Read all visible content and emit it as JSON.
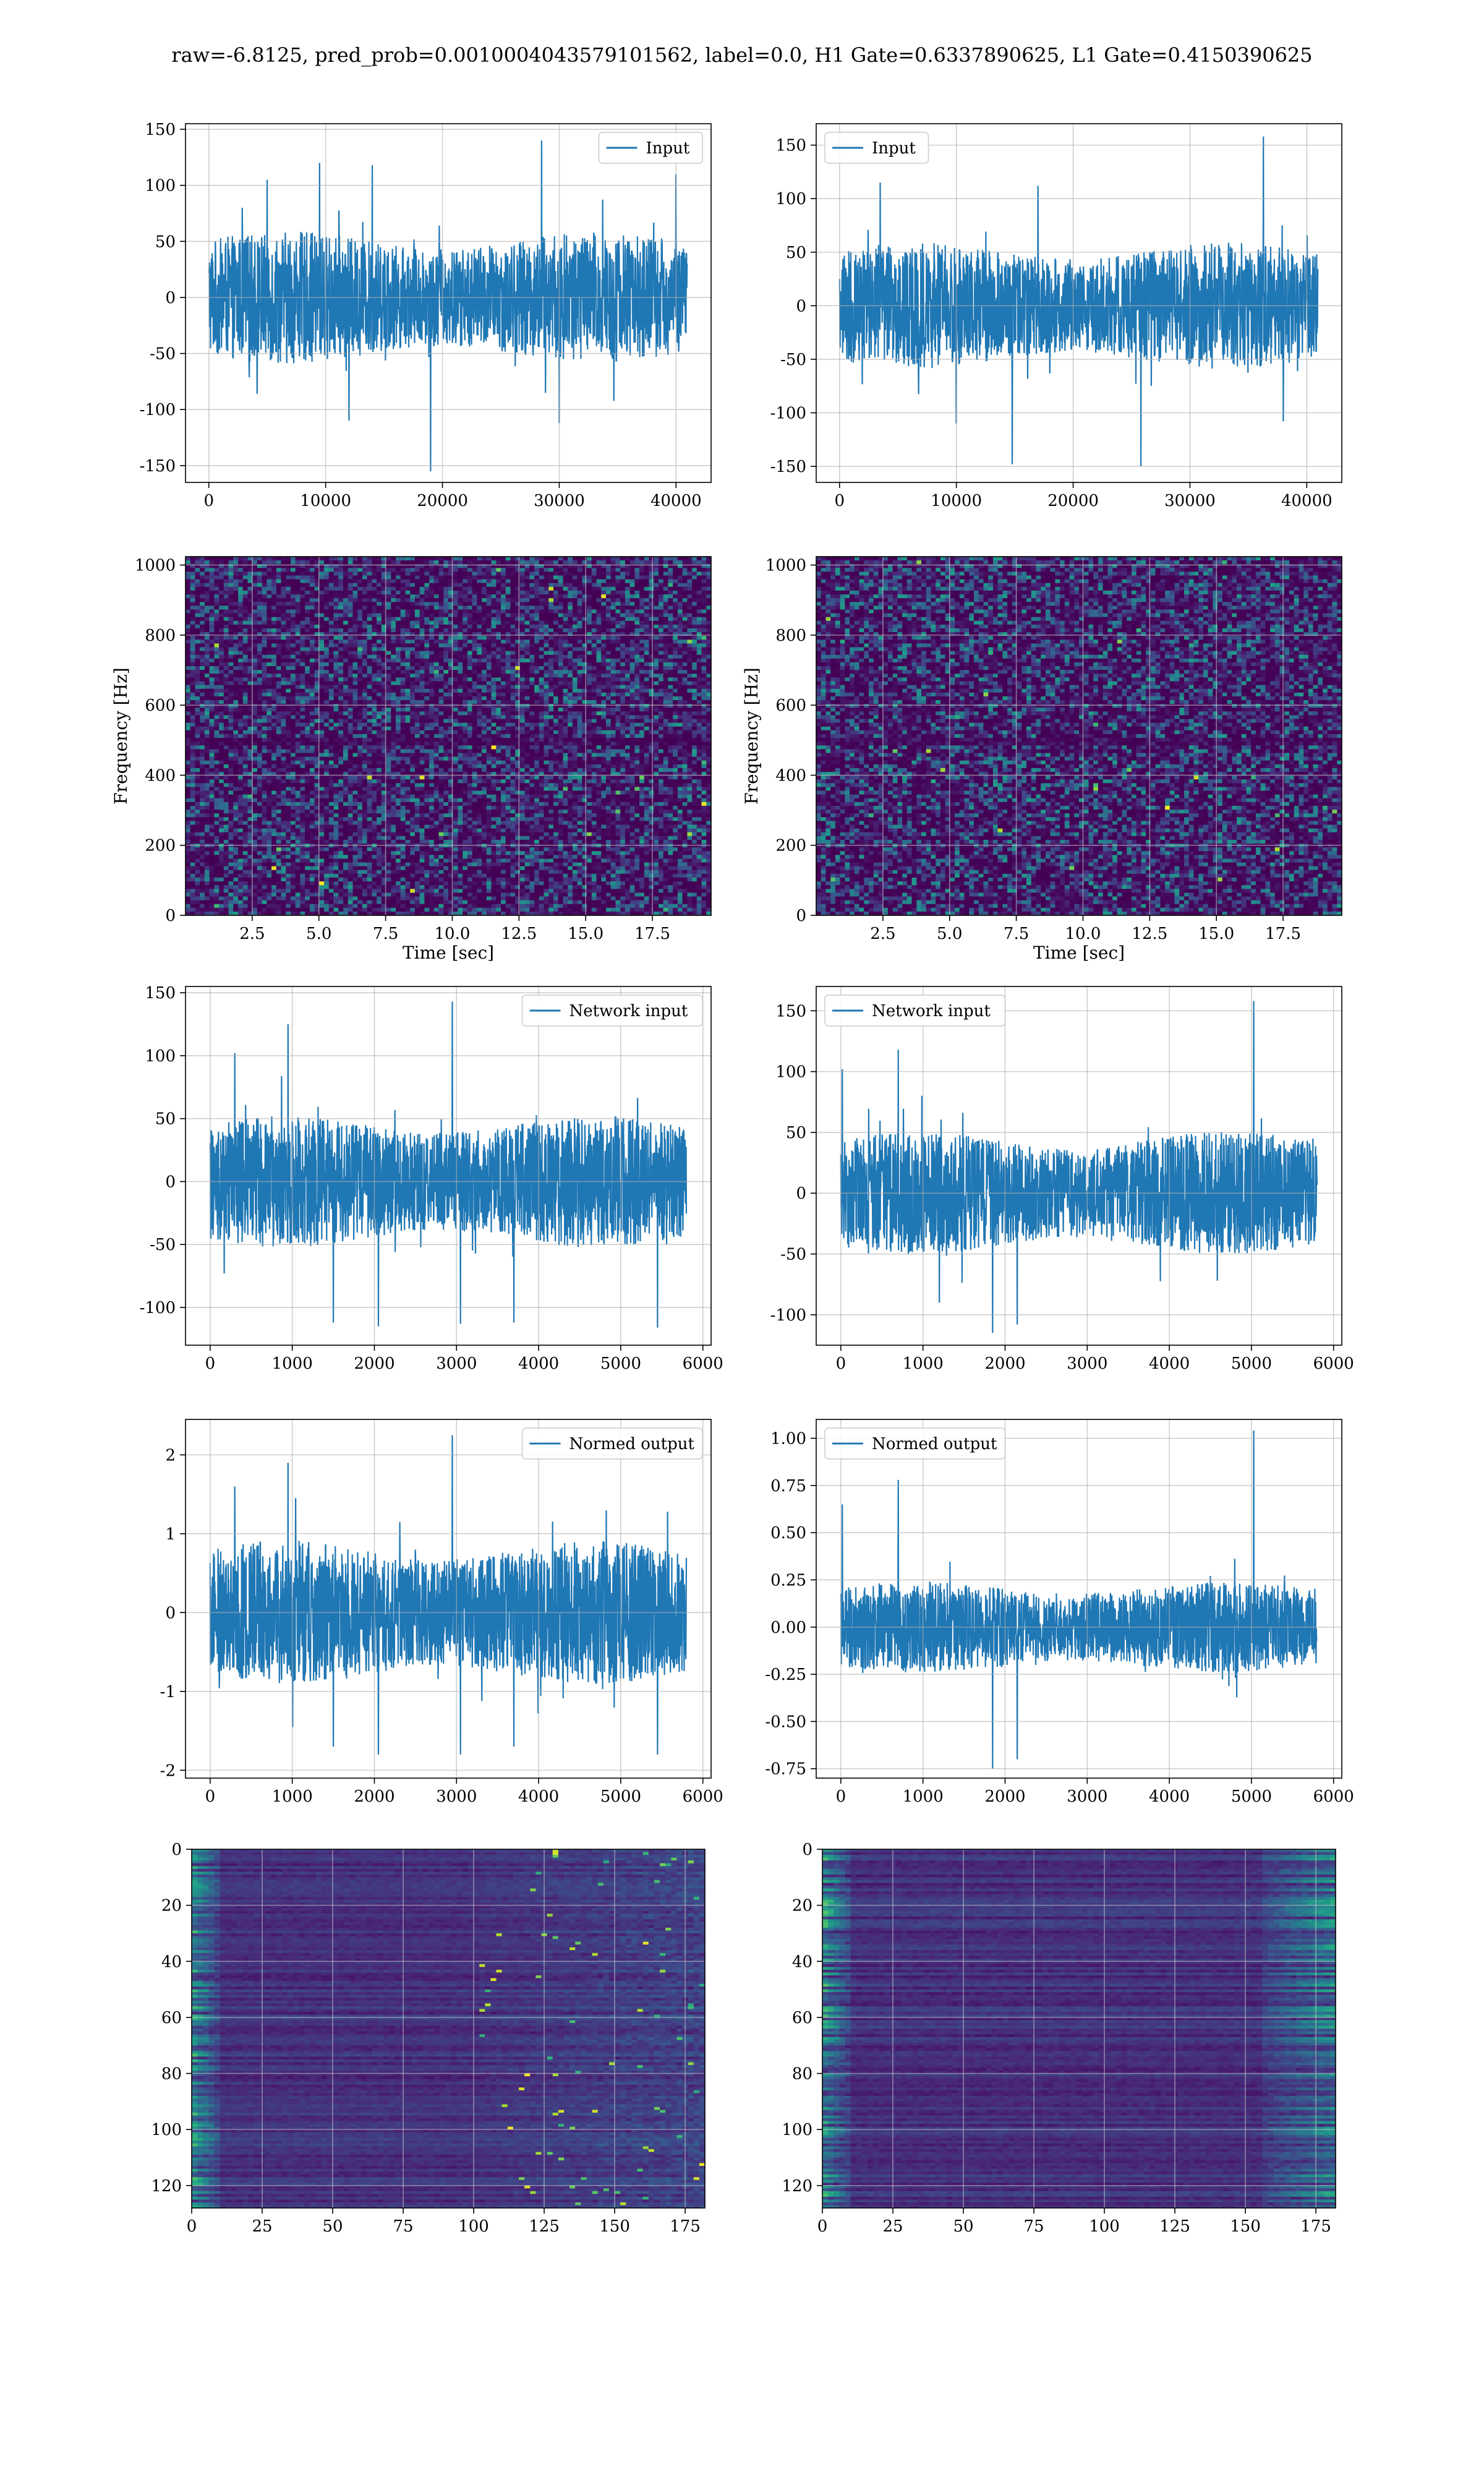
{
  "suptitle": "raw=-6.8125, pred_prob=0.0010004043579101562, label=0.0, H1 Gate=0.6337890625, L1 Gate=0.4150390625",
  "colors": {
    "line": "#1f77b4",
    "grid": "#b0b0b0",
    "viridis": [
      "#440154",
      "#482878",
      "#3e4989",
      "#31688e",
      "#26828e",
      "#1f9e89",
      "#35b779",
      "#6ece58",
      "#b5de2b",
      "#fde725"
    ]
  },
  "chart_data": [
    {
      "id": "input-h1",
      "type": "line",
      "legend": "Input",
      "xlim": [
        -2000,
        43000
      ],
      "ylim": [
        -165,
        155
      ],
      "xticks": [
        0,
        10000,
        20000,
        30000,
        40000
      ],
      "yticks": [
        -150,
        -100,
        -50,
        0,
        50,
        100,
        150
      ],
      "signal": {
        "n": 40960,
        "noise_amp": 27,
        "peaks": [
          [
            5000,
            105
          ],
          [
            9500,
            120
          ],
          [
            12000,
            -110
          ],
          [
            14000,
            118
          ],
          [
            19000,
            -155
          ],
          [
            28500,
            140
          ],
          [
            30000,
            -112
          ],
          [
            40000,
            110
          ]
        ]
      }
    },
    {
      "id": "input-l1",
      "type": "line",
      "legend": "Input",
      "xlim": [
        -2000,
        43000
      ],
      "ylim": [
        -165,
        170
      ],
      "xticks": [
        0,
        10000,
        20000,
        30000,
        40000
      ],
      "yticks": [
        -150,
        -100,
        -50,
        0,
        50,
        100,
        150
      ],
      "signal": {
        "n": 40960,
        "noise_amp": 27,
        "peaks": [
          [
            3500,
            115
          ],
          [
            10000,
            -110
          ],
          [
            14800,
            -148
          ],
          [
            17000,
            112
          ],
          [
            25800,
            -150
          ],
          [
            36300,
            158
          ],
          [
            38000,
            -108
          ]
        ]
      }
    },
    {
      "id": "spectrogram-h1",
      "type": "heatmap",
      "xlim": [
        0,
        19.7
      ],
      "ylim": [
        0,
        1024
      ],
      "xticks": [
        2.5,
        5.0,
        7.5,
        10.0,
        12.5,
        15.0,
        17.5
      ],
      "yticks": [
        0,
        200,
        400,
        600,
        800,
        1000
      ],
      "xlabel": "Time [sec]",
      "ylabel": "Frequency [Hz]",
      "dark_band_hz": 500
    },
    {
      "id": "spectrogram-l1",
      "type": "heatmap",
      "xlim": [
        0,
        19.7
      ],
      "ylim": [
        0,
        1024
      ],
      "xticks": [
        2.5,
        5.0,
        7.5,
        10.0,
        12.5,
        15.0,
        17.5
      ],
      "yticks": [
        0,
        200,
        400,
        600,
        800,
        1000
      ],
      "xlabel": "Time [sec]",
      "ylabel": "Frequency [Hz]",
      "dark_band_hz": 500
    },
    {
      "id": "network-input-h1",
      "type": "line",
      "legend": "Network input",
      "xlim": [
        -300,
        6100
      ],
      "ylim": [
        -130,
        155
      ],
      "xticks": [
        0,
        1000,
        2000,
        3000,
        4000,
        5000,
        6000
      ],
      "yticks": [
        -100,
        -50,
        0,
        50,
        100,
        150
      ],
      "signal": {
        "n": 5800,
        "noise_amp": 24,
        "peaks": [
          [
            300,
            102
          ],
          [
            950,
            125
          ],
          [
            1500,
            -112
          ],
          [
            2050,
            -115
          ],
          [
            2950,
            143
          ],
          [
            3050,
            -113
          ],
          [
            3700,
            -112
          ],
          [
            5450,
            -116
          ]
        ]
      }
    },
    {
      "id": "network-input-l1",
      "type": "line",
      "legend": "Network input",
      "xlim": [
        -300,
        6100
      ],
      "ylim": [
        -125,
        170
      ],
      "xticks": [
        0,
        1000,
        2000,
        3000,
        4000,
        5000,
        6000
      ],
      "yticks": [
        -100,
        -50,
        0,
        50,
        100,
        150
      ],
      "signal": {
        "n": 5800,
        "noise_amp": 23,
        "peaks": [
          [
            20,
            102
          ],
          [
            700,
            118
          ],
          [
            1200,
            -90
          ],
          [
            1850,
            -115
          ],
          [
            2150,
            -108
          ],
          [
            5030,
            158
          ]
        ]
      }
    },
    {
      "id": "normed-output-h1",
      "type": "line",
      "legend": "Normed output",
      "xlim": [
        -300,
        6100
      ],
      "ylim": [
        -2.1,
        2.45
      ],
      "xticks": [
        0,
        1000,
        2000,
        3000,
        4000,
        5000,
        6000
      ],
      "yticks": [
        -2,
        -1,
        0,
        1,
        2
      ],
      "signal": {
        "n": 5800,
        "noise_amp": 0.42,
        "peaks": [
          [
            300,
            1.6
          ],
          [
            950,
            1.9
          ],
          [
            1500,
            -1.7
          ],
          [
            2050,
            -1.8
          ],
          [
            2950,
            2.25
          ],
          [
            3050,
            -1.8
          ],
          [
            3700,
            -1.7
          ],
          [
            5450,
            -1.8
          ]
        ]
      }
    },
    {
      "id": "normed-output-l1",
      "type": "line",
      "legend": "Normed output",
      "xlim": [
        -300,
        6100
      ],
      "ylim": [
        -0.8,
        1.1
      ],
      "xticks": [
        0,
        1000,
        2000,
        3000,
        4000,
        5000,
        6000
      ],
      "yticks": [
        -0.75,
        -0.5,
        -0.25,
        0.0,
        0.25,
        0.5,
        0.75,
        1.0
      ],
      "signal": {
        "n": 5800,
        "noise_amp": 0.11,
        "peaks": [
          [
            20,
            0.65
          ],
          [
            700,
            0.78
          ],
          [
            1850,
            -0.75
          ],
          [
            2150,
            -0.7
          ],
          [
            5030,
            1.04
          ]
        ]
      }
    },
    {
      "id": "features-h1",
      "type": "heatmap",
      "xlim": [
        0,
        182
      ],
      "ylim": [
        128,
        0
      ],
      "xticks": [
        0,
        25,
        50,
        75,
        100,
        125,
        150,
        175
      ],
      "yticks": [
        0,
        20,
        40,
        60,
        80,
        100,
        120
      ],
      "rows": 128,
      "cols": 182,
      "activity": "left-edge-and-right-half"
    },
    {
      "id": "features-l1",
      "type": "heatmap",
      "xlim": [
        0,
        182
      ],
      "ylim": [
        128,
        0
      ],
      "xticks": [
        0,
        25,
        50,
        75,
        100,
        125,
        150,
        175
      ],
      "yticks": [
        0,
        20,
        40,
        60,
        80,
        100,
        120
      ],
      "rows": 128,
      "cols": 182,
      "activity": "left-edge-and-right-edge"
    }
  ]
}
